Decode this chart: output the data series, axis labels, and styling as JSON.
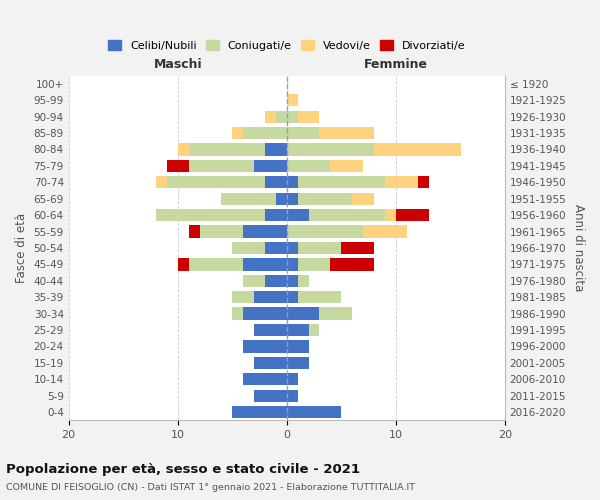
{
  "age_groups": [
    "100+",
    "95-99",
    "90-94",
    "85-89",
    "80-84",
    "75-79",
    "70-74",
    "65-69",
    "60-64",
    "55-59",
    "50-54",
    "45-49",
    "40-44",
    "35-39",
    "30-34",
    "25-29",
    "20-24",
    "15-19",
    "10-14",
    "5-9",
    "0-4"
  ],
  "birth_years": [
    "≤ 1920",
    "1921-1925",
    "1926-1930",
    "1931-1935",
    "1936-1940",
    "1941-1945",
    "1946-1950",
    "1951-1955",
    "1956-1960",
    "1961-1965",
    "1966-1970",
    "1971-1975",
    "1976-1980",
    "1981-1985",
    "1986-1990",
    "1991-1995",
    "1996-2000",
    "2001-2005",
    "2006-2010",
    "2011-2015",
    "2016-2020"
  ],
  "colors": {
    "celibe": "#4472C4",
    "coniugato": "#C5D9A0",
    "vedovo": "#FFD280",
    "divorziato": "#CC0000"
  },
  "maschi": {
    "celibe": [
      0,
      0,
      0,
      0,
      2,
      3,
      2,
      1,
      2,
      4,
      2,
      4,
      2,
      3,
      4,
      3,
      4,
      3,
      4,
      3,
      5
    ],
    "coniugato": [
      0,
      0,
      1,
      4,
      7,
      6,
      9,
      5,
      10,
      4,
      3,
      5,
      2,
      2,
      1,
      0,
      0,
      0,
      0,
      0,
      0
    ],
    "vedovo": [
      0,
      0,
      1,
      1,
      1,
      0,
      1,
      0,
      0,
      0,
      0,
      0,
      0,
      0,
      0,
      0,
      0,
      0,
      0,
      0,
      0
    ],
    "divorziato": [
      0,
      0,
      0,
      0,
      0,
      2,
      0,
      0,
      0,
      1,
      0,
      1,
      0,
      0,
      0,
      0,
      0,
      0,
      0,
      0,
      0
    ]
  },
  "femmine": {
    "nubile": [
      0,
      0,
      0,
      0,
      0,
      0,
      1,
      1,
      2,
      0,
      1,
      1,
      1,
      1,
      3,
      2,
      2,
      2,
      1,
      1,
      5
    ],
    "coniugata": [
      0,
      0,
      1,
      3,
      8,
      4,
      8,
      5,
      7,
      7,
      4,
      3,
      1,
      4,
      3,
      1,
      0,
      0,
      0,
      0,
      0
    ],
    "vedova": [
      0,
      1,
      2,
      5,
      8,
      3,
      3,
      2,
      1,
      4,
      0,
      0,
      0,
      0,
      0,
      0,
      0,
      0,
      0,
      0,
      0
    ],
    "divorziata": [
      0,
      0,
      0,
      0,
      0,
      0,
      1,
      0,
      3,
      0,
      3,
      4,
      0,
      0,
      0,
      0,
      0,
      0,
      0,
      0,
      0
    ]
  },
  "xlim": 20,
  "title_main": "Popolazione per età, sesso e stato civile - 2021",
  "title_sub": "COMUNE DI FEISOGLIO (CN) - Dati ISTAT 1° gennaio 2021 - Elaborazione TUTTITALIA.IT",
  "ylabel_left": "Fasce di età",
  "ylabel_right": "Anni di nascita",
  "xlabel_maschi": "Maschi",
  "xlabel_femmine": "Femmine",
  "bg_color": "#F2F2F2",
  "plot_bg": "#FFFFFF"
}
